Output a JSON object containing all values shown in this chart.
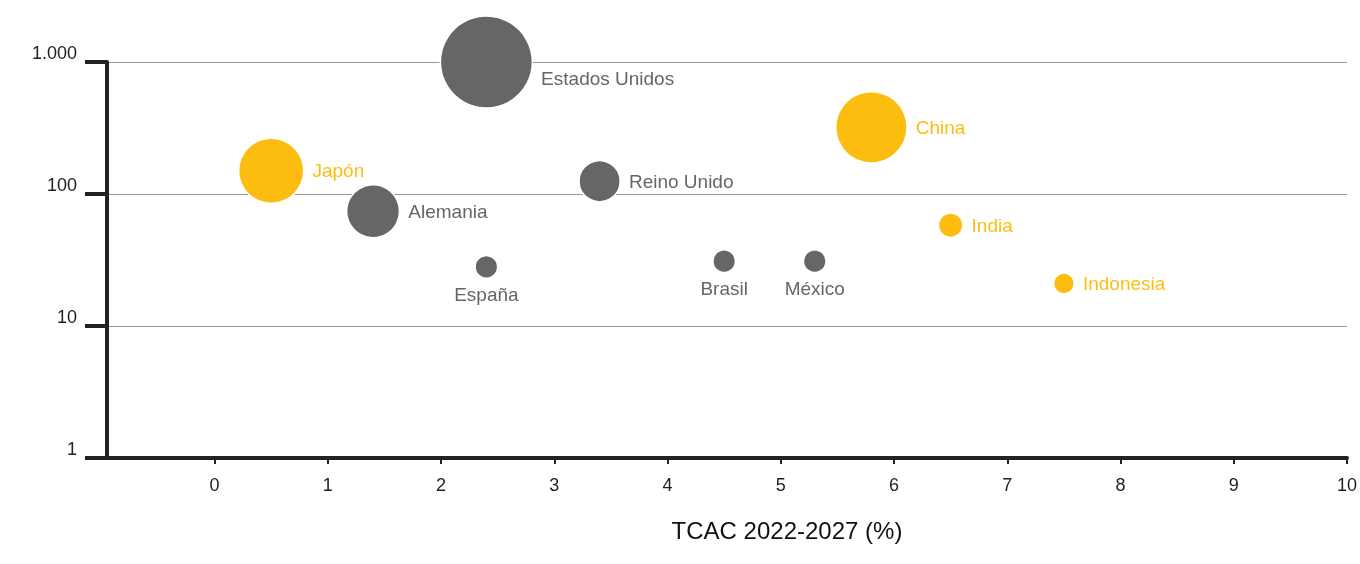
{
  "chart_data": {
    "type": "bubble",
    "xlabel": "TCAC 2022-2027 (%)",
    "xlim": [
      -0.95,
      10
    ],
    "xticks": [
      0,
      1,
      2,
      3,
      4,
      5,
      6,
      7,
      8,
      9,
      10
    ],
    "ylim": [
      1,
      1000
    ],
    "yticks": [
      1,
      10,
      100,
      {
        "value": 1000,
        "label": "1.000"
      }
    ],
    "log": "y",
    "grid": "y",
    "marker": "circle",
    "series": [
      {
        "name": "Estados Unidos",
        "color": "#666666",
        "x": [
          2.4
        ],
        "values": [
          1000
        ],
        "sizes": [
          1
        ]
      },
      {
        "name": "China",
        "color": "#fdbd10",
        "x": [
          5.8
        ],
        "values": [
          320
        ],
        "sizes": [
          0.6
        ]
      },
      {
        "name": "Japón",
        "color": "#fdbd10",
        "x": [
          0.5
        ],
        "values": [
          150
        ],
        "sizes": [
          0.5
        ]
      },
      {
        "name": "Reino Unido",
        "color": "#666666",
        "x": [
          3.4
        ],
        "values": [
          125
        ],
        "sizes": [
          0.2
        ]
      },
      {
        "name": "Alemania",
        "color": "#666666",
        "x": [
          1.4
        ],
        "values": [
          74
        ],
        "sizes": [
          0.33
        ]
      },
      {
        "name": "India",
        "color": "#fdbd10",
        "x": [
          6.5
        ],
        "values": [
          58
        ],
        "sizes": [
          0.07
        ]
      },
      {
        "name": "España",
        "color": "#666666",
        "x": [
          2.4
        ],
        "values": [
          28
        ],
        "sizes": [
          0.06
        ]
      },
      {
        "name": "Brasil",
        "color": "#666666",
        "x": [
          4.5
        ],
        "values": [
          31
        ],
        "sizes": [
          0.06
        ]
      },
      {
        "name": "México",
        "color": "#666666",
        "x": [
          5.3
        ],
        "values": [
          31
        ],
        "sizes": [
          0.06
        ]
      },
      {
        "name": "Indonesia",
        "color": "#fdbd10",
        "x": [
          7.5
        ],
        "values": [
          21
        ],
        "sizes": [
          0.05
        ]
      }
    ]
  }
}
